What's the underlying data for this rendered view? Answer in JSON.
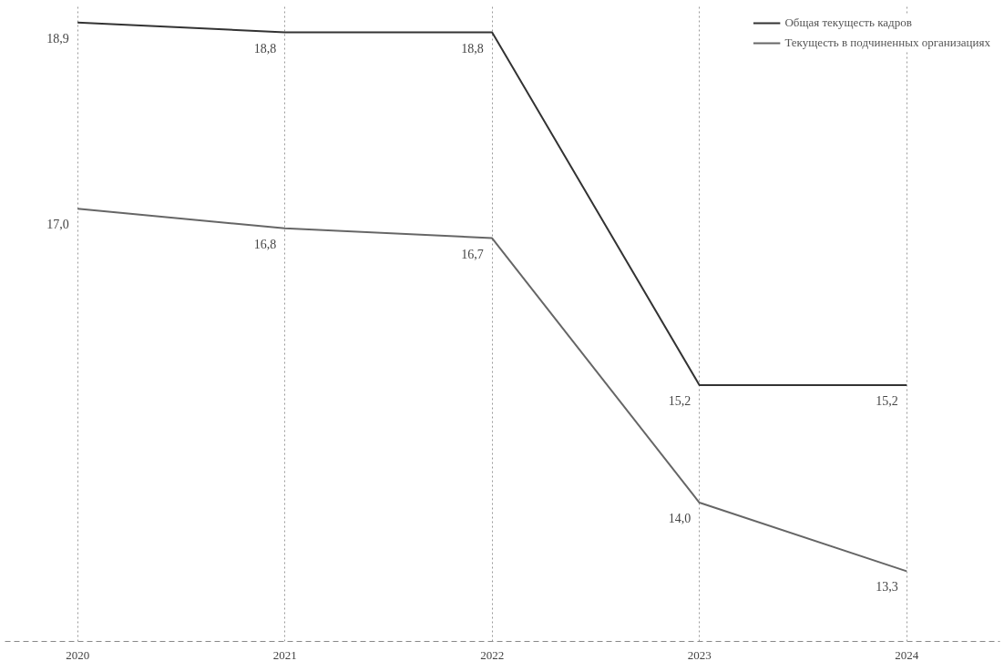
{
  "chart_data": {
    "type": "line",
    "categories": [
      "2020",
      "2021",
      "2022",
      "2023",
      "2024"
    ],
    "series": [
      {
        "name": "Общая текущесть кадров",
        "color": "#333333",
        "values": [
          18.9,
          18.8,
          18.8,
          15.2,
          15.2
        ],
        "value_labels": [
          "18,9",
          "18,8",
          "18,8",
          "15,2",
          "15,2"
        ]
      },
      {
        "name": "Текущесть в подчиненных организациях",
        "color": "#666666",
        "values": [
          17.0,
          16.8,
          16.7,
          14.0,
          13.3
        ],
        "value_labels": [
          "17,0",
          "16,8",
          "16,7",
          "14,0",
          "13,3"
        ]
      }
    ],
    "grid": "x",
    "legend": "top right",
    "marker": "none",
    "line_style": "solid"
  }
}
